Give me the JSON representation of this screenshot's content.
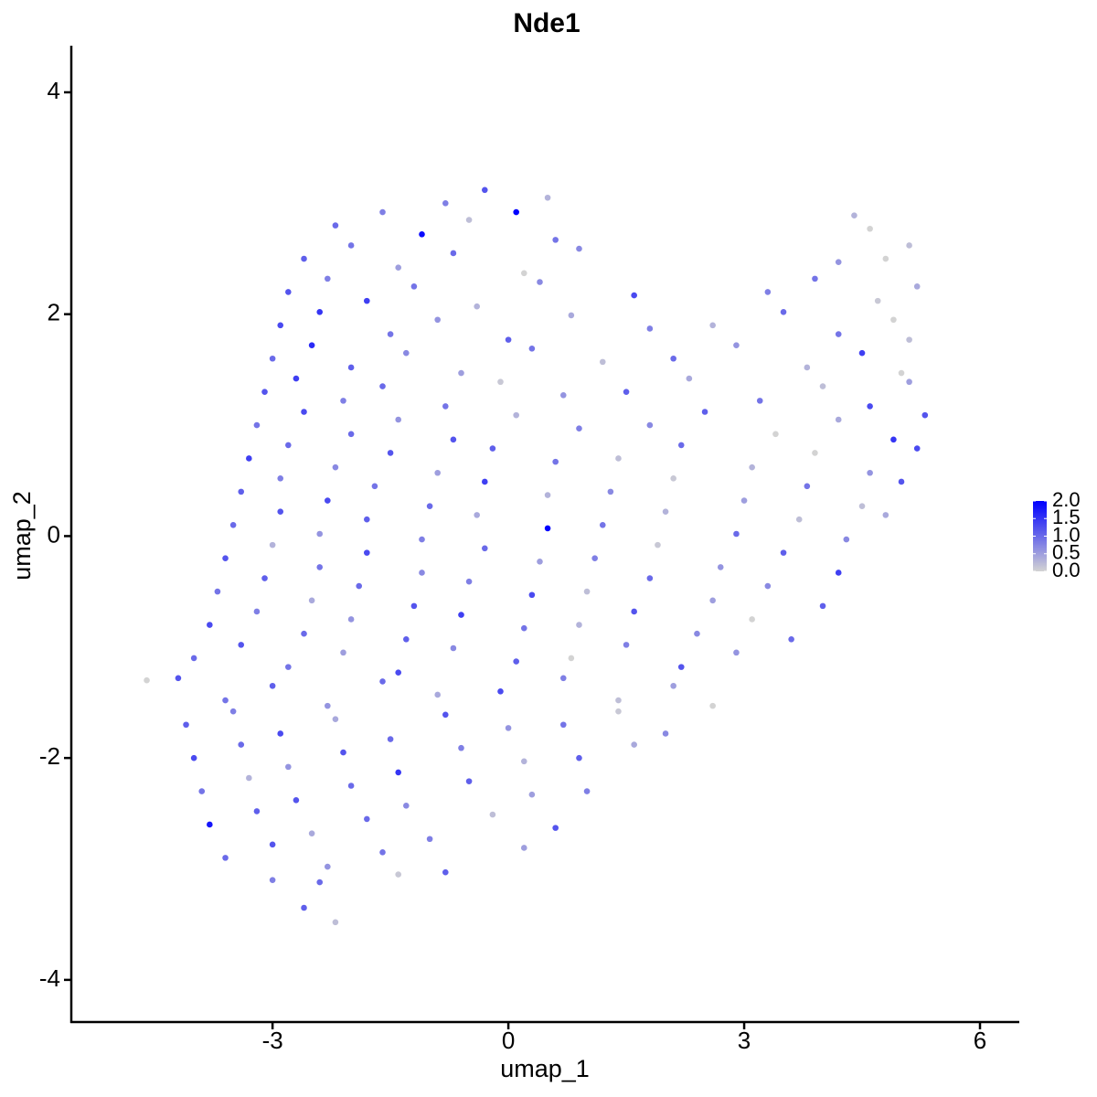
{
  "chart_data": {
    "type": "scatter",
    "title": "Nde1",
    "x_label": "umap_1",
    "y_label": "umap_2",
    "x": [
      -0.8,
      -0.3,
      0.1,
      0.5,
      -2.2,
      -1.6,
      -1.1,
      -0.5,
      0.6,
      4.4,
      4.6,
      -2.6,
      -2.0,
      -1.4,
      -0.7,
      0.2,
      0.9,
      4.2,
      4.8,
      5.1,
      -2.8,
      -2.3,
      -1.8,
      -1.2,
      -0.4,
      0.4,
      1.6,
      3.3,
      3.9,
      4.7,
      5.2,
      -2.9,
      -2.4,
      -1.5,
      -0.9,
      0,
      0.8,
      1.8,
      2.6,
      3.5,
      4.2,
      4.9,
      5.1,
      -3.0,
      -2.5,
      -2.0,
      -1.3,
      -0.6,
      0.3,
      1.2,
      2.1,
      2.9,
      3.8,
      4.5,
      5.0,
      -3.1,
      -2.7,
      -2.1,
      -1.6,
      -0.8,
      -0.1,
      0.7,
      1.5,
      2.3,
      3.2,
      4.0,
      4.6,
      5.1,
      -3.2,
      -2.6,
      -2.0,
      -1.4,
      -0.7,
      0.1,
      0.9,
      1.8,
      2.5,
      3.4,
      4.2,
      4.9,
      5.3,
      -3.3,
      -2.8,
      -2.2,
      -1.5,
      -0.9,
      -0.2,
      0.6,
      1.4,
      2.2,
      3.1,
      3.9,
      4.6,
      5.2,
      -3.4,
      -2.9,
      -2.3,
      -1.7,
      -1.0,
      -0.3,
      0.5,
      1.3,
      2.1,
      3.0,
      3.8,
      4.5,
      5.0,
      -3.5,
      -2.9,
      -2.4,
      -1.8,
      -1.1,
      -0.4,
      0.5,
      1.2,
      2.0,
      2.9,
      3.7,
      4.3,
      4.8,
      -3.6,
      -3.0,
      -2.4,
      -1.8,
      -1.1,
      -0.3,
      0.4,
      1.1,
      1.9,
      2.7,
      3.5,
      4.2,
      -3.7,
      -3.1,
      -2.5,
      -1.9,
      -1.2,
      -0.5,
      0.3,
      1.0,
      1.8,
      2.6,
      3.3,
      4.0,
      -3.8,
      -3.2,
      -2.6,
      -2.0,
      -1.3,
      -0.6,
      0.2,
      0.9,
      1.6,
      2.4,
      3.1,
      3.6,
      -4.0,
      -3.4,
      -2.8,
      -2.1,
      -1.4,
      -0.7,
      0.1,
      0.8,
      1.5,
      2.2,
      2.9,
      -4.6,
      -4.2,
      -3.6,
      -3.0,
      -2.3,
      -1.6,
      -0.9,
      -0.1,
      0.7,
      1.4,
      2.1,
      2.6,
      -4.1,
      -3.5,
      -2.9,
      -2.2,
      -1.5,
      -0.8,
      0,
      0.7,
      1.4,
      2.0,
      -4.0,
      -3.4,
      -2.8,
      -2.1,
      -1.4,
      -0.6,
      0.2,
      0.9,
      1.6,
      -3.9,
      -3.3,
      -2.7,
      -2.0,
      -1.3,
      -0.5,
      0.3,
      1.0,
      -3.8,
      -3.2,
      -2.5,
      -1.8,
      -1.0,
      -0.2,
      0.6,
      -3.6,
      -3.0,
      -2.3,
      -1.6,
      -0.8,
      0.2,
      -3.0,
      -2.4,
      -1.4,
      -2.6,
      -2.2
    ],
    "y": [
      3.0,
      3.12,
      2.92,
      3.05,
      2.8,
      2.92,
      2.72,
      2.85,
      2.67,
      2.89,
      2.77,
      2.5,
      2.62,
      2.42,
      2.55,
      2.37,
      2.59,
      2.47,
      2.5,
      2.62,
      2.2,
      2.32,
      2.12,
      2.25,
      2.07,
      2.29,
      2.17,
      2.2,
      2.32,
      2.12,
      2.25,
      1.9,
      2.02,
      1.82,
      1.95,
      1.77,
      1.99,
      1.87,
      1.9,
      2.02,
      1.82,
      1.95,
      1.77,
      1.6,
      1.72,
      1.52,
      1.65,
      1.47,
      1.69,
      1.57,
      1.6,
      1.72,
      1.52,
      1.65,
      1.47,
      1.3,
      1.42,
      1.22,
      1.35,
      1.17,
      1.39,
      1.27,
      1.3,
      1.42,
      1.22,
      1.35,
      1.17,
      1.39,
      1.0,
      1.12,
      0.92,
      1.05,
      0.87,
      1.09,
      0.97,
      1.0,
      1.12,
      0.92,
      1.05,
      0.87,
      1.09,
      0.7,
      0.82,
      0.62,
      0.75,
      0.57,
      0.79,
      0.67,
      0.7,
      0.82,
      0.62,
      0.75,
      0.57,
      0.79,
      0.4,
      0.52,
      0.32,
      0.45,
      0.27,
      0.49,
      0.37,
      0.4,
      0.52,
      0.32,
      0.45,
      0.27,
      0.49,
      0.1,
      0.22,
      0.02,
      0.15,
      -0.03,
      0.19,
      0.07,
      0.1,
      0.22,
      0.02,
      0.15,
      -0.03,
      0.19,
      -0.2,
      -0.08,
      -0.28,
      -0.15,
      -0.33,
      -0.11,
      -0.23,
      -0.2,
      -0.08,
      -0.28,
      -0.15,
      -0.33,
      -0.5,
      -0.38,
      -0.58,
      -0.45,
      -0.63,
      -0.41,
      -0.53,
      -0.5,
      -0.38,
      -0.58,
      -0.45,
      -0.63,
      -0.8,
      -0.68,
      -0.88,
      -0.75,
      -0.93,
      -0.71,
      -0.83,
      -0.8,
      -0.68,
      -0.88,
      -0.75,
      -0.93,
      -1.1,
      -0.98,
      -1.18,
      -1.05,
      -1.23,
      -1.01,
      -1.13,
      -1.1,
      -0.98,
      -1.18,
      -1.05,
      -1.3,
      -1.28,
      -1.48,
      -1.35,
      -1.53,
      -1.31,
      -1.43,
      -1.4,
      -1.28,
      -1.48,
      -1.35,
      -1.53,
      -1.7,
      -1.58,
      -1.78,
      -1.65,
      -1.83,
      -1.61,
      -1.73,
      -1.7,
      -1.58,
      -1.78,
      -2.0,
      -1.88,
      -2.08,
      -1.95,
      -2.13,
      -1.91,
      -2.03,
      -2.0,
      -1.88,
      -2.3,
      -2.18,
      -2.38,
      -2.25,
      -2.43,
      -2.21,
      -2.33,
      -2.3,
      -2.6,
      -2.48,
      -2.68,
      -2.55,
      -2.73,
      -2.51,
      -2.63,
      -2.9,
      -2.78,
      -2.98,
      -2.85,
      -3.03,
      -2.81,
      -3.1,
      -3.12,
      -3.05,
      -3.35,
      -3.48
    ],
    "values": [
      0.8,
      1.2,
      2.0,
      0.3,
      1.0,
      0.8,
      1.9,
      0.2,
      0.9,
      0.3,
      0,
      1.1,
      0.9,
      0.5,
      1.0,
      0,
      0.7,
      0.6,
      0,
      0.2,
      1.2,
      0.8,
      1.4,
      0.9,
      0.3,
      0.7,
      1.3,
      0.8,
      0.9,
      0.1,
      0.4,
      1.3,
      1.5,
      0.9,
      0.6,
      1.1,
      0.4,
      0.8,
      0.3,
      1.0,
      0.9,
      0,
      0.2,
      1.0,
      1.6,
      1.1,
      0.7,
      0.5,
      0.9,
      0.2,
      1.0,
      0.6,
      0.3,
      1.4,
      0,
      1.2,
      1.4,
      0.8,
      1.0,
      0.9,
      0.1,
      0.6,
      1.1,
      0.4,
      0.9,
      0.2,
      1.3,
      0.5,
      0.9,
      1.3,
      1.0,
      0.6,
      1.2,
      0.3,
      0.8,
      0.7,
      1.1,
      0,
      0.4,
      1.5,
      1.2,
      1.4,
      1.0,
      0.7,
      1.2,
      0.5,
      1.1,
      0.9,
      0.2,
      1.0,
      0.3,
      0,
      0.6,
      1.3,
      1.1,
      0.8,
      1.3,
      0.9,
      1.0,
      1.4,
      0.3,
      0.7,
      0.1,
      0.5,
      0.9,
      0.2,
      1.2,
      1.0,
      1.2,
      0.6,
      1.1,
      0.8,
      0.4,
      2.0,
      0.9,
      0.3,
      1.0,
      0.2,
      0.7,
      0.4,
      1.2,
      0.3,
      0.9,
      1.3,
      0.7,
      1.0,
      0.5,
      0.8,
      0.1,
      0.6,
      1.1,
      1.4,
      0.9,
      1.1,
      0.4,
      1.0,
      1.2,
      0.8,
      1.3,
      0.2,
      1.0,
      0.5,
      0.7,
      1.1,
      1.3,
      0.8,
      1.0,
      0.6,
      1.1,
      1.4,
      0.9,
      0.3,
      1.2,
      0.7,
      0,
      1.0,
      1.0,
      1.2,
      0.9,
      0.5,
      1.3,
      0.7,
      1.1,
      0,
      0.8,
      1.2,
      0.6,
      0,
      1.2,
      0.9,
      1.1,
      0.6,
      1.0,
      0.4,
      1.3,
      0.8,
      0.2,
      0.5,
      0,
      1.1,
      0.8,
      1.3,
      0.4,
      1.0,
      1.2,
      0.6,
      0.9,
      0.1,
      0.7,
      1.3,
      1.0,
      0.6,
      1.2,
      1.5,
      0.8,
      0.3,
      1.1,
      0.4,
      0.9,
      0.3,
      1.2,
      1.0,
      0.7,
      1.1,
      0.5,
      0.8,
      1.8,
      1.1,
      0.4,
      1.0,
      0.8,
      0.2,
      1.2,
      1.0,
      1.2,
      0.6,
      0.9,
      1.1,
      0.5,
      0.8,
      1.0,
      0.1,
      1.1,
      0.2
    ],
    "colors": [
      "#d3d3d3",
      "#0000ff"
    ],
    "xlim": [
      -5.56,
      6.5
    ],
    "ylim": [
      -4.38,
      4.42
    ],
    "xticks": [
      -3,
      0,
      3,
      6
    ],
    "yticks": [
      -4,
      -2,
      0,
      2,
      4
    ],
    "colorlim": [
      0,
      2
    ],
    "colorticks": [
      {
        "value": 0,
        "label": "0.0"
      },
      {
        "value": 0.5,
        "label": "0.5"
      },
      {
        "value": 1,
        "label": "1.0"
      },
      {
        "value": 1.5,
        "label": "1.5"
      },
      {
        "value": 2,
        "label": "2.0"
      }
    ],
    "legend_position": "right"
  }
}
